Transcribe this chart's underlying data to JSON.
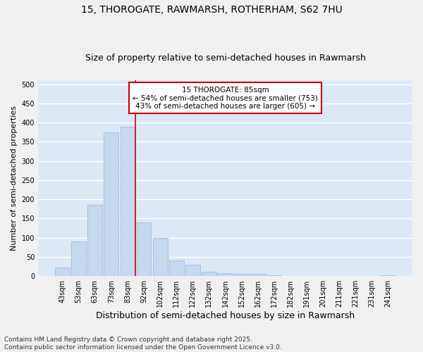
{
  "title1": "15, THOROGATE, RAWMARSH, ROTHERHAM, S62 7HU",
  "title2": "Size of property relative to semi-detached houses in Rawmarsh",
  "xlabel": "Distribution of semi-detached houses by size in Rawmarsh",
  "ylabel": "Number of semi-detached properties",
  "categories": [
    "43sqm",
    "53sqm",
    "63sqm",
    "73sqm",
    "83sqm",
    "92sqm",
    "102sqm",
    "112sqm",
    "122sqm",
    "132sqm",
    "142sqm",
    "152sqm",
    "162sqm",
    "172sqm",
    "182sqm",
    "191sqm",
    "201sqm",
    "211sqm",
    "221sqm",
    "231sqm",
    "241sqm"
  ],
  "values": [
    22,
    90,
    185,
    375,
    390,
    140,
    100,
    40,
    30,
    12,
    8,
    6,
    5,
    2,
    1,
    0,
    1,
    0,
    0,
    0,
    2
  ],
  "bar_color": "#c5d8f0",
  "bar_edge_color": "#a0bce0",
  "vline_color": "#cc0000",
  "vline_pos": 4.5,
  "annotation_title": "15 THOROGATE: 85sqm",
  "annotation_line1": "← 54% of semi-detached houses are smaller (753)",
  "annotation_line2": "43% of semi-detached houses are larger (605) →",
  "annotation_box_color": "#ffffff",
  "annotation_box_edge": "#cc0000",
  "footer1": "Contains HM Land Registry data © Crown copyright and database right 2025.",
  "footer2": "Contains public sector information licensed under the Open Government Licence v3.0.",
  "ylim": [
    0,
    510
  ],
  "yticks": [
    0,
    50,
    100,
    150,
    200,
    250,
    300,
    350,
    400,
    450,
    500
  ],
  "bg_color": "#dde8f5",
  "grid_color": "#ffffff",
  "fig_bg": "#f0f0f0",
  "title_fontsize": 10,
  "subtitle_fontsize": 9,
  "axis_label_fontsize": 8,
  "tick_fontsize": 7,
  "footer_fontsize": 6.5
}
